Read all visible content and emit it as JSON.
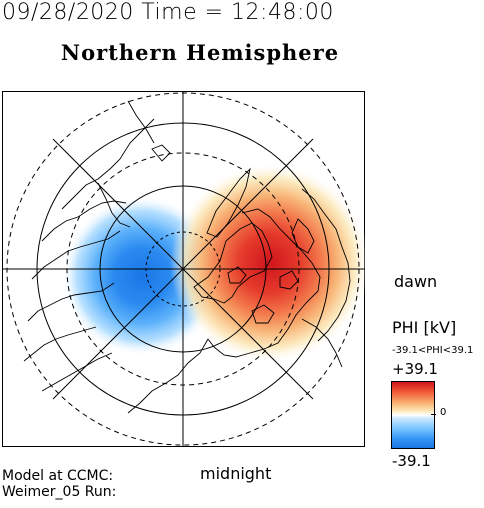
{
  "header": {
    "timestamp": "09/28/2020 Time = 12:48:00",
    "title": "Northern Hemisphere"
  },
  "map": {
    "orientation": {
      "right": "dawn",
      "bottom": "midnight"
    },
    "potential_cells": [
      {
        "name": "dusk-cell",
        "sign": "negative",
        "color": "#1976e6"
      },
      {
        "name": "dawn-cell",
        "sign": "positive",
        "color": "#d0141c"
      }
    ]
  },
  "colorbar": {
    "title": "PHI [kV]",
    "range_text": "-39.1<PHI<39.1",
    "max": "+39.1",
    "zero": "0",
    "min": "-39.1",
    "max_color": "#d0141c",
    "min_color": "#1976e6"
  },
  "footer": {
    "line1": "Model at CCMC:",
    "line2": "Weimer_05 Run:"
  }
}
